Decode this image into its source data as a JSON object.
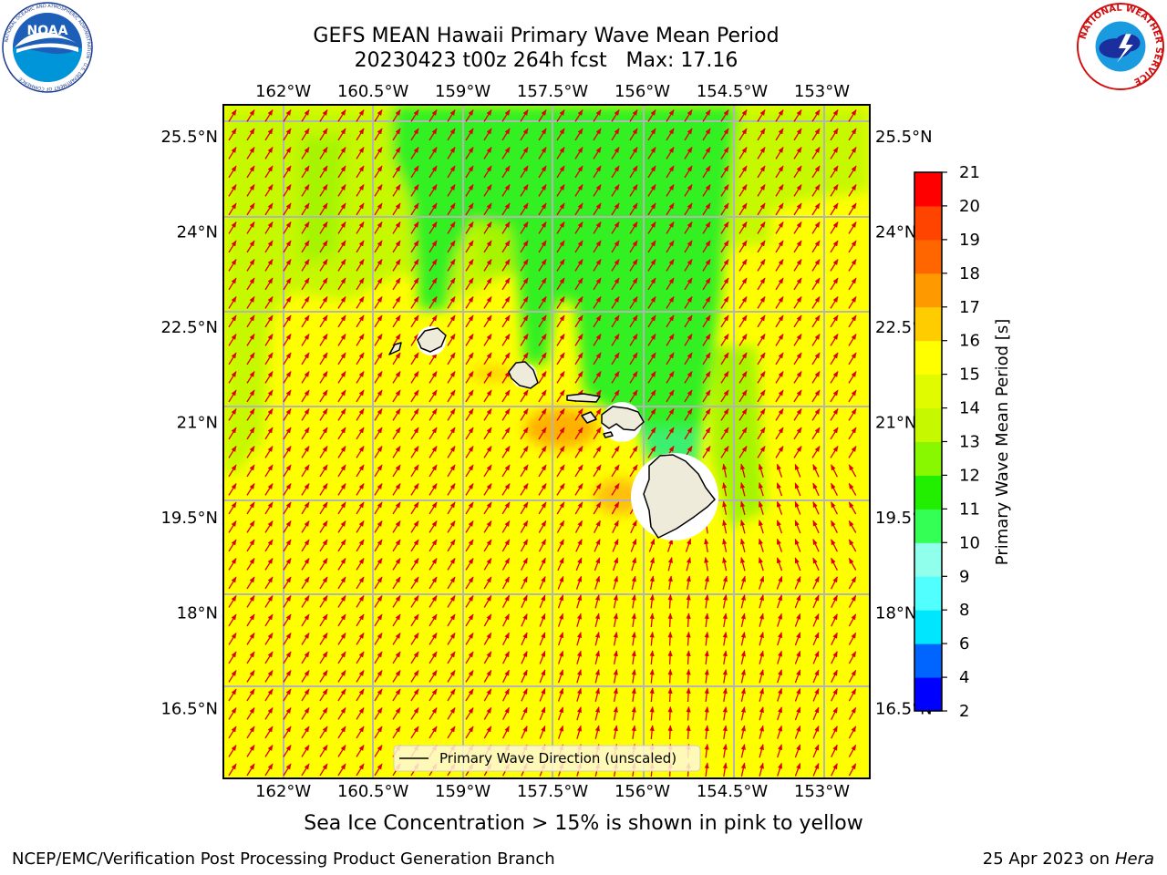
{
  "header": {
    "title_line1": "GEFS MEAN Hawaii Primary Wave Mean Period",
    "title_line2": "20230423 t00z 264h fcst   Max: 17.16"
  },
  "logos": {
    "left": "noaa-logo",
    "left_text": "NOAA",
    "left_ring_text": "NATIONAL OCEANIC AND ATMOSPHERIC ADMINISTRATION · U.S. DEPARTMENT OF COMMERCE",
    "right": "nws-logo",
    "right_ring_text": "NATIONAL WEATHER SERVICE"
  },
  "chart_data": {
    "type": "heatmap",
    "field": "Primary Wave Mean Period",
    "max_value": 17.16,
    "x_ticks": [
      "162°W",
      "160.5°W",
      "159°W",
      "157.5°W",
      "156°W",
      "154.5°W",
      "153°W"
    ],
    "x_tick_values": [
      -162,
      -160.5,
      -159,
      -157.5,
      -156,
      -154.5,
      -153
    ],
    "y_ticks": [
      "25.5°N",
      "24°N",
      "22.5°N",
      "21°N",
      "19.5°N",
      "18°N",
      "16.5°N"
    ],
    "y_tick_values": [
      25.5,
      24,
      22.5,
      21,
      19.5,
      18,
      16.5
    ],
    "xlim": [
      -163,
      -152.2
    ],
    "ylim": [
      15.4,
      26
    ],
    "grid": true,
    "vector_field": {
      "name": "Primary Wave Direction (unscaled)",
      "color": "#e00000",
      "dominant_direction": "toward north-east",
      "south_of_big_island": "toward north"
    },
    "regions": [
      {
        "description": "open ocean",
        "value_range": [
          14,
          15
        ]
      },
      {
        "description": "north-central band",
        "value_range": [
          11,
          12
        ]
      },
      {
        "description": "south of Molokai and west of Big Island",
        "value_range": [
          15,
          16
        ]
      }
    ],
    "legend": {
      "label": "Primary Wave Direction (unscaled)",
      "position": "bottom-center"
    },
    "colorbar": {
      "label": "Primary Wave Mean Period [s]",
      "ticks": [
        2,
        4,
        6,
        8,
        9,
        10,
        11,
        12,
        13,
        14,
        15,
        16,
        17,
        18,
        19,
        20,
        21
      ],
      "colors": [
        "#0000ff",
        "#0064ff",
        "#00e6ff",
        "#52ffff",
        "#90ffeb",
        "#33ff55",
        "#22ee00",
        "#88f800",
        "#c6f800",
        "#e0fa00",
        "#ffff00",
        "#ffcc00",
        "#ff9900",
        "#ff6600",
        "#ff4400",
        "#ff0000"
      ]
    }
  },
  "note": "Sea Ice Concentration > 15% is shown in pink to yellow",
  "footer": {
    "left": "NCEP/EMC/Verification Post Processing Product Generation Branch",
    "right_date": "25 Apr 2023 on",
    "right_host": "Hera"
  }
}
